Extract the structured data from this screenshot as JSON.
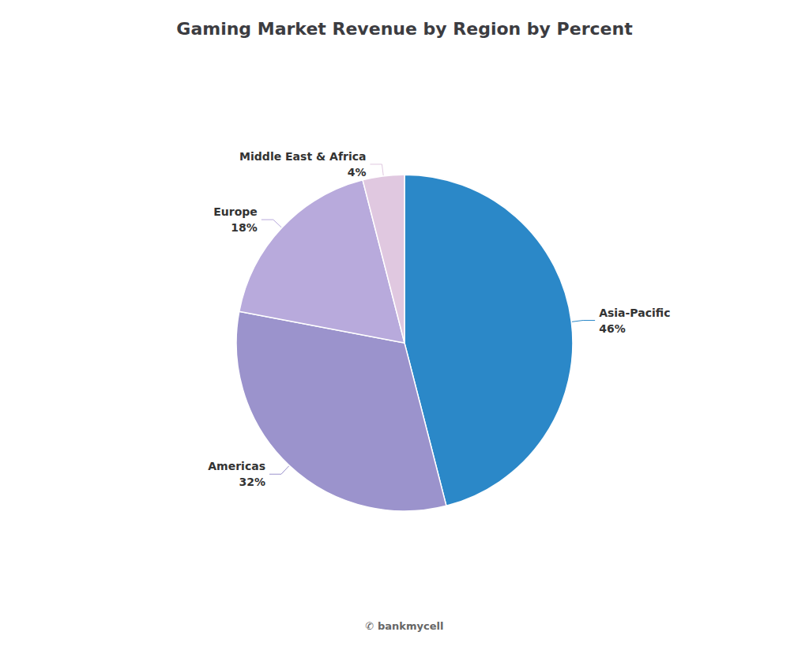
{
  "chart_data": {
    "type": "pie",
    "title": "Gaming Market Revenue by Region by Percent",
    "categories": [
      "Asia-Pacific",
      "Americas",
      "Europe",
      "Middle East & Africa"
    ],
    "values": [
      46,
      32,
      18,
      4
    ],
    "value_labels": [
      "46%",
      "32%",
      "18%",
      "4%"
    ],
    "colors": [
      "#2B88C8",
      "#9B93CC",
      "#B8AADC",
      "#E0C8E0"
    ],
    "data_labels": true,
    "annotations": [
      "✆ bankmycell"
    ]
  }
}
